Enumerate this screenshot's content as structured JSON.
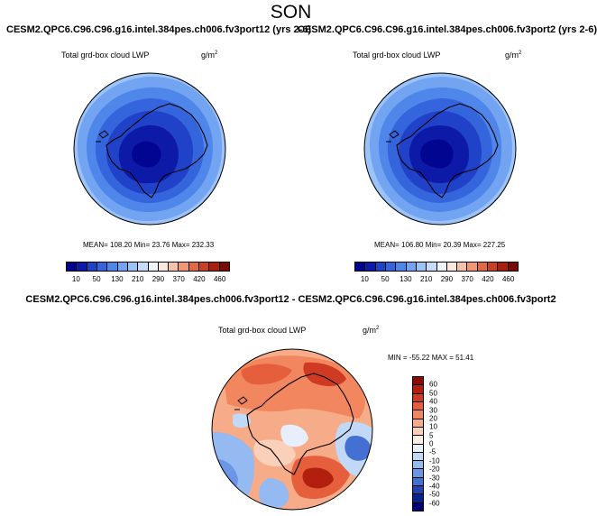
{
  "season": "SON",
  "chart_data": [
    {
      "type": "heatmap",
      "projection": "south polar stereographic",
      "case": "CESM2.QPC6.C96.C96.g16.intel.384pes.ch006.fv3port12 (yrs 2-6)",
      "title": "Total grd-box cloud LWP",
      "units": "g/m",
      "units_exp": "2",
      "stats": "MEAN= 108.20  Min=  23.76  Max= 232.33",
      "mean": 108.2,
      "min": 23.76,
      "max": 232.33,
      "levels": [
        "10",
        "50",
        "130",
        "210",
        "290",
        "370",
        "420",
        "460"
      ]
    },
    {
      "type": "heatmap",
      "projection": "south polar stereographic",
      "case": "CESM2.QPC6.C96.C96.g16.intel.384pes.ch006.fv3port2 (yrs 2-6)",
      "title": "Total grd-box cloud LWP",
      "units": "g/m",
      "units_exp": "2",
      "stats": "MEAN= 106.80  Min=  20.39  Max= 227.25",
      "mean": 106.8,
      "min": 20.39,
      "max": 227.25,
      "levels": [
        "10",
        "50",
        "130",
        "210",
        "290",
        "370",
        "420",
        "460"
      ]
    },
    {
      "type": "heatmap",
      "projection": "south polar stereographic",
      "case": "CESM2.QPC6.C96.C96.g16.intel.384pes.ch006.fv3port12 - CESM2.QPC6.C96.C96.g16.intel.384pes.ch006.fv3port2",
      "title": "Total grd-box cloud LWP",
      "units": "g/m",
      "units_exp": "2",
      "stats": "MIN = -55.22 MAX =  51.41",
      "min": -55.22,
      "max": 51.41,
      "levels": [
        "60",
        "50",
        "40",
        "30",
        "20",
        "10",
        "5",
        "0",
        "-5",
        "-10",
        "-20",
        "-30",
        "-40",
        "-50",
        "-60"
      ]
    }
  ],
  "colors": {
    "seq": [
      "#00008a",
      "#0d1aa8",
      "#1f42c8",
      "#3565dc",
      "#4f86ea",
      "#73a4f2",
      "#9cc3f8",
      "#c6ddfb",
      "#eef4fc",
      "#fbe7dd",
      "#f6c3a8",
      "#ef9776",
      "#e06848",
      "#cb3f25",
      "#a5200f",
      "#7a0b04"
    ],
    "div": [
      "#8a0b04",
      "#b21f0e",
      "#cf3b22",
      "#e65f3c",
      "#f2875f",
      "#f6ab89",
      "#fbd0ba",
      "#fdeee4",
      "#e6effb",
      "#c2d8f7",
      "#95b9f1",
      "#6b96e6",
      "#4470d4",
      "#1f44b2",
      "#0a2290",
      "#00006e"
    ]
  }
}
